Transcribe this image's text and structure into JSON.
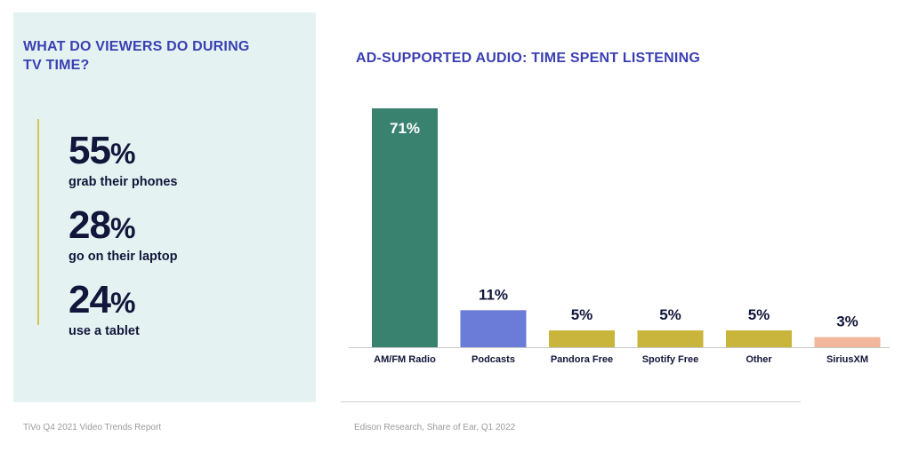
{
  "left": {
    "title": "WHAT DO VIEWERS DO DURING TV TIME?",
    "stats": [
      {
        "number": "55",
        "unit": "%",
        "label": "grab their phones"
      },
      {
        "number": "28",
        "unit": "%",
        "label": "go on their laptop"
      },
      {
        "number": "24",
        "unit": "%",
        "label": "use a tablet"
      }
    ],
    "source": "TiVo Q4 2021 Video Trends Report"
  },
  "chart_data": {
    "type": "bar",
    "title": "AD-SUPPORTED AUDIO: TIME SPENT LISTENING",
    "categories": [
      "AM/FM Radio",
      "Podcasts",
      "Pandora Free",
      "Spotify Free",
      "Other",
      "SiriusXM"
    ],
    "values": [
      71,
      11,
      5,
      5,
      5,
      3
    ],
    "data_labels": [
      "71%",
      "11%",
      "5%",
      "5%",
      "5%",
      "3%"
    ],
    "colors": [
      "#3a8270",
      "#6b7bd8",
      "#c9b53b",
      "#c9b53b",
      "#c9b53b",
      "#f2b79c"
    ],
    "ylim": [
      0,
      71
    ],
    "grid": false,
    "source": "Edison Research, Share of Ear, Q1 2022"
  }
}
